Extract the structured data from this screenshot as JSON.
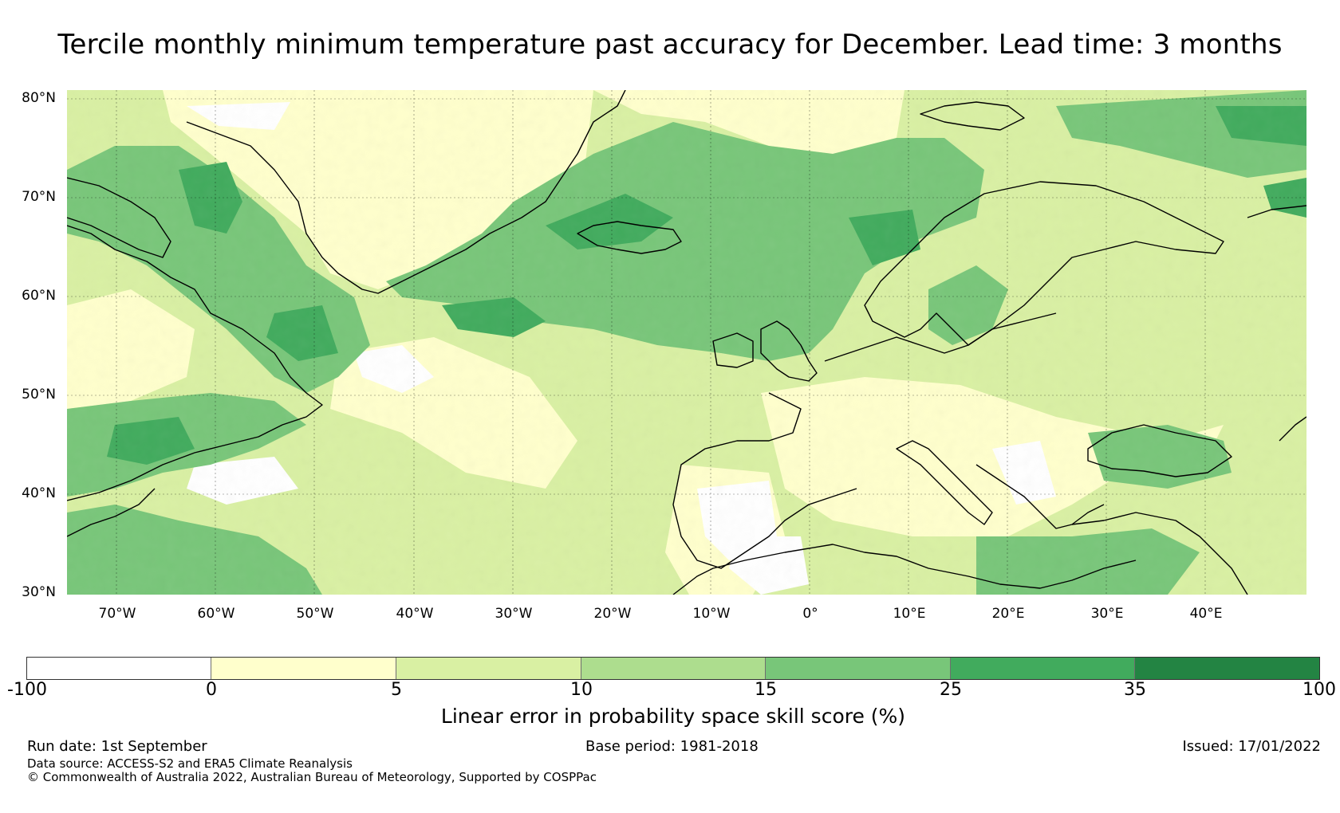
{
  "title": "Tercile monthly minimum temperature past accuracy for December. Lead time: 3 months",
  "map": {
    "lat_labels": [
      "80°N",
      "70°N",
      "60°N",
      "50°N",
      "40°N",
      "30°N"
    ],
    "lon_labels": [
      "70°W",
      "60°W",
      "50°W",
      "40°W",
      "30°W",
      "20°W",
      "10°W",
      "0°",
      "10°E",
      "20°E",
      "30°E",
      "40°E"
    ],
    "lat_range": [
      30,
      81
    ],
    "lon_range": [
      -75,
      50
    ]
  },
  "colorbar": {
    "ticks": [
      "-100",
      "0",
      "5",
      "10",
      "15",
      "25",
      "35",
      "100"
    ],
    "colors": [
      "#ffffff",
      "#ffffcc",
      "#d9f0a3",
      "#addd8e",
      "#78c679",
      "#41ab5d",
      "#238443"
    ],
    "label": "Linear error in probability space skill score (%)"
  },
  "footer": {
    "run_date": "Run date: 1st September",
    "base_period": "Base period: 1981-2018",
    "issued": "Issued: 17/01/2022",
    "data_source": "Data source: ACCESS-S2 and ERA5 Climate Reanalysis",
    "copyright": "© Commonwealth of Australia 2022, Australian Bureau of Meteorology, Supported by COSPPac"
  }
}
